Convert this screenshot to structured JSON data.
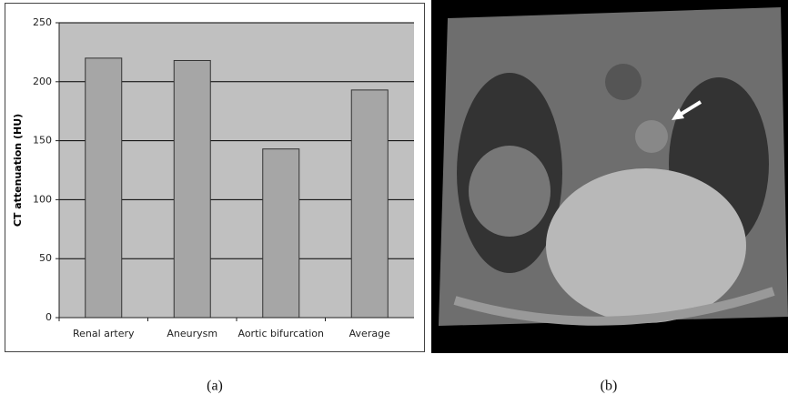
{
  "chart_data": {
    "type": "bar",
    "ylabel": "CT attenuation (HU)",
    "categories": [
      "Renal artery",
      "Aneurysm",
      "Aortic bifurcation",
      "Average"
    ],
    "values": [
      220,
      218,
      143,
      193
    ],
    "color": "#a6a6a6",
    "ylim": [
      0,
      250
    ],
    "yticks": [
      0,
      50,
      100,
      150,
      200,
      250
    ],
    "grid": true
  },
  "captions": [
    "(a)",
    "(b)"
  ]
}
